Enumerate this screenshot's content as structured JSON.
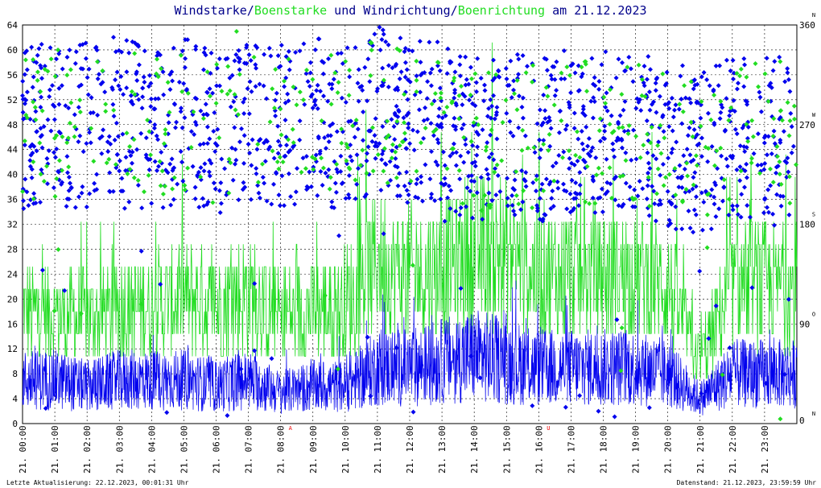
{
  "title": {
    "part1": "Windstarke/",
    "part2": "Boenstarke",
    "part3": " und Windrichtung/",
    "part4": "Boenrichtung",
    "part5": " am 21.12.2023"
  },
  "footer": {
    "left": "Letzte Aktualisierung: 22.12.2023, 00:01:31 Uhr",
    "right": "Datenstand: 21.12.2023, 23:59:59 Uhr"
  },
  "colors": {
    "wind": "#0000ee",
    "gust": "#22dd22",
    "title_dark": "#00008b",
    "grid": "#000000",
    "marker": "#ee0000",
    "text": "#000000"
  },
  "markers": [
    {
      "label": "A",
      "time": 8.3
    },
    {
      "label": "U",
      "time": 16.3
    }
  ],
  "chart_data": {
    "type": "scatter",
    "x_axis": {
      "range_hours": [
        0,
        24
      ],
      "tick_labels": [
        "21. 00:00",
        "21. 01:00",
        "21. 02:00",
        "21. 03:00",
        "21. 04:00",
        "21. 05:00",
        "21. 06:00",
        "21. 07:00",
        "21. 08:00",
        "21. 09:00",
        "21. 10:00",
        "21. 11:00",
        "21. 12:00",
        "21. 13:00",
        "21. 14:00",
        "21. 15:00",
        "21. 16:00",
        "21. 17:00",
        "21. 18:00",
        "21. 19:00",
        "21. 20:00",
        "21. 21:00",
        "21. 22:00",
        "21. 23:00"
      ]
    },
    "y_left": {
      "range": [
        0,
        64
      ],
      "tick_labels": [
        "0",
        "4",
        "8",
        "12",
        "16",
        "20",
        "24",
        "28",
        "32",
        "36",
        "40",
        "44",
        "48",
        "52",
        "56",
        "60",
        "64"
      ]
    },
    "y_right": {
      "range": [
        0,
        360
      ],
      "ticks": [
        {
          "value": 0,
          "label": "0",
          "dir": "N"
        },
        {
          "value": 90,
          "label": "90",
          "dir": "O"
        },
        {
          "value": 180,
          "label": "180",
          "dir": "S"
        },
        {
          "value": 270,
          "label": "270",
          "dir": "W"
        },
        {
          "value": 360,
          "label": "360",
          "dir": "N"
        }
      ]
    },
    "grid": true,
    "series": [
      {
        "name": "Windstarke",
        "type": "line",
        "axis": "left",
        "hourly_mean": [
          7,
          7,
          6,
          7,
          7,
          7,
          6,
          7,
          5,
          6,
          6,
          9,
          9,
          10,
          11,
          10,
          9,
          9,
          9,
          9,
          8,
          4,
          8,
          8
        ]
      },
      {
        "name": "Boenstarke",
        "type": "line",
        "axis": "left",
        "hourly_mean": [
          18,
          17,
          17,
          18,
          19,
          20,
          19,
          21,
          17,
          18,
          19,
          26,
          24,
          25,
          28,
          27,
          24,
          24,
          24,
          24,
          22,
          10,
          22,
          22
        ]
      },
      {
        "name": "Windrichtung",
        "type": "scatter",
        "axis": "right",
        "hourly_mean": [
          265,
          270,
          270,
          275,
          265,
          275,
          260,
          270,
          270,
          275,
          265,
          285,
          270,
          270,
          255,
          265,
          255,
          265,
          262,
          265,
          252,
          245,
          258,
          262
        ]
      },
      {
        "name": "Boenrichtung",
        "type": "scatter",
        "axis": "right",
        "hourly_mean": [
          265,
          270,
          270,
          275,
          265,
          275,
          260,
          270,
          270,
          275,
          265,
          285,
          270,
          270,
          255,
          265,
          255,
          265,
          262,
          265,
          252,
          245,
          258,
          262
        ]
      }
    ]
  }
}
